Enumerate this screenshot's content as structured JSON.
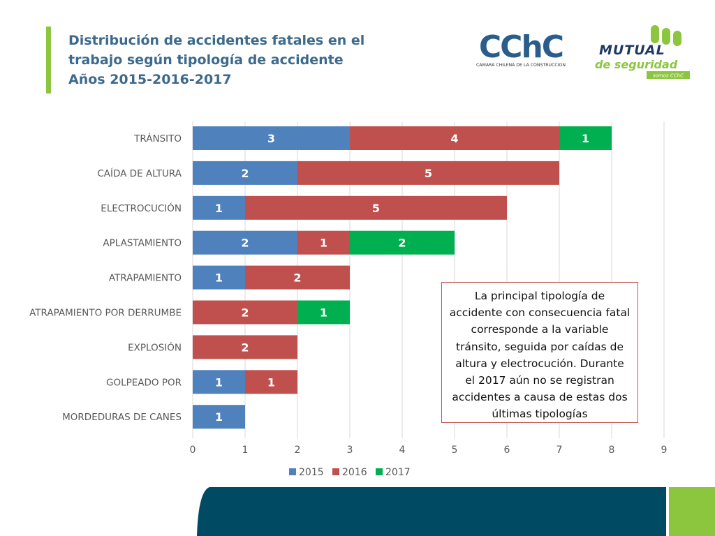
{
  "slide": {
    "title_lines": [
      "Distribución de accidentes fatales en el",
      "trabajo según tipología de accidente",
      "Años 2015-2016-2017"
    ],
    "note": "La principal tipología de accidente con consecuencia fatal corresponde a la variable tránsito, seguida por caídas de altura y electrocución. Durante el 2017 aún no se registran accidentes a causa de estas dos últimas tipologías"
  },
  "logos": {
    "cchc": {
      "wordmark": "CChC",
      "caption": "CAMARA CHILENA DE LA CONSTRUCCION"
    },
    "mutual": {
      "line1": "MUTUAL",
      "line2": "de seguridad",
      "tagline": "somos CChC"
    }
  },
  "colors": {
    "accent_green": "#8cc63f",
    "title_blue": "#3d6a8c",
    "footer_dark": "#004a63",
    "cchc_red": "#d9262c",
    "cchc_blue": "#2b5d8c",
    "mutual_green": "#8cc63f",
    "mutual_navy": "#1f3a5f"
  },
  "chart_data": {
    "type": "bar",
    "orientation": "horizontal",
    "stacked": true,
    "categories": [
      "TRÁNSITO",
      "CAÍDA DE ALTURA",
      "ELECTROCUCIÓN",
      "APLASTAMIENTO",
      "ATRAPAMIENTO",
      "ATRAPAMIENTO POR DERRUMBE",
      "EXPLOSIÓN",
      "GOLPEADO POR",
      "MORDEDURAS DE CANES"
    ],
    "series": [
      {
        "name": "2015",
        "color": "#4f81bd",
        "values": [
          3,
          2,
          1,
          2,
          1,
          0,
          0,
          1,
          1
        ]
      },
      {
        "name": "2016",
        "color": "#c0504d",
        "values": [
          4,
          5,
          5,
          1,
          2,
          2,
          2,
          1,
          0
        ]
      },
      {
        "name": "2017",
        "color": "#00b050",
        "values": [
          1,
          0,
          0,
          2,
          0,
          1,
          0,
          0,
          0
        ]
      }
    ],
    "xlim": [
      0,
      9
    ],
    "xticks": [
      0,
      1,
      2,
      3,
      4,
      5,
      6,
      7,
      8,
      9
    ],
    "grid": true,
    "data_labels": true,
    "legend": "bottom"
  }
}
